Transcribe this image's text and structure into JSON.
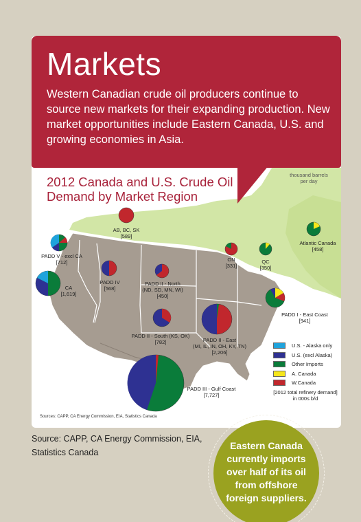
{
  "header": {
    "title": "Markets",
    "intro": "Western Canadian crude oil producers continue to source new markets for their expanding production. New market opportunities include Eastern Canada, U.S. and growing economies in Asia."
  },
  "map": {
    "title_line1": "2012 Canada and U.S. Crude Oil",
    "title_line2": "Demand by Market Region",
    "units_line1": "thousand barrels",
    "units_line2": "per day",
    "source": "Sources: CAPP, CA Energy Commission, EIA, Statistics Canada",
    "colors": {
      "us_alaska": "#1fa3dc",
      "us_excl_alaska": "#2e3192",
      "other_imports": "#0a7c3a",
      "a_canada": "#f5e61b",
      "w_canada": "#c1272d"
    },
    "regions": [
      {
        "name_line1": "AB, BC, SK",
        "name_line2": "",
        "value": "[589]"
      },
      {
        "name_line1": "PADD V - excl CA",
        "name_line2": "",
        "value": "[712]"
      },
      {
        "name_line1": "CA",
        "name_line2": "",
        "value": "[1,619]"
      },
      {
        "name_line1": "PADD IV",
        "name_line2": "",
        "value": "[568]"
      },
      {
        "name_line1": "PADD II - North",
        "name_line2": "(ND, SD, MN, WI)",
        "value": "[450]"
      },
      {
        "name_line1": "ON",
        "name_line2": "",
        "value": "[331]"
      },
      {
        "name_line1": "QC",
        "name_line2": "",
        "value": "[350]"
      },
      {
        "name_line1": "Atlantic Canada",
        "name_line2": "",
        "value": "[458]"
      },
      {
        "name_line1": "PADD I - East Coast",
        "name_line2": "",
        "value": "[941]"
      },
      {
        "name_line1": "PADD II - South (KS, OK)",
        "name_line2": "",
        "value": "[782]"
      },
      {
        "name_line1": "PADD II - East",
        "name_line2": "(MI, IL, IN, OH, KY, TN)",
        "value": "[2,206]"
      },
      {
        "name_line1": "PADD III - Gulf Coast",
        "name_line2": "",
        "value": "[7,727]"
      }
    ],
    "legend": [
      {
        "label": "U.S. - Alaska only",
        "color": "#1fa3dc"
      },
      {
        "label": "U.S. (excl Alaska)",
        "color": "#2e3192"
      },
      {
        "label": "Other Imports",
        "color": "#0a7c3a"
      },
      {
        "label": "A. Canada",
        "color": "#f5e61b"
      },
      {
        "label": "W.Canada",
        "color": "#c1272d"
      }
    ],
    "legend_note": "[2012 total refinery demand] in 000s b/d"
  },
  "footer": {
    "source": "Source: CAPP, CA Energy Commission, EIA, Statistics Canada",
    "callout": "Eastern Canada currently imports over half of its oil from offshore foreign suppliers."
  }
}
